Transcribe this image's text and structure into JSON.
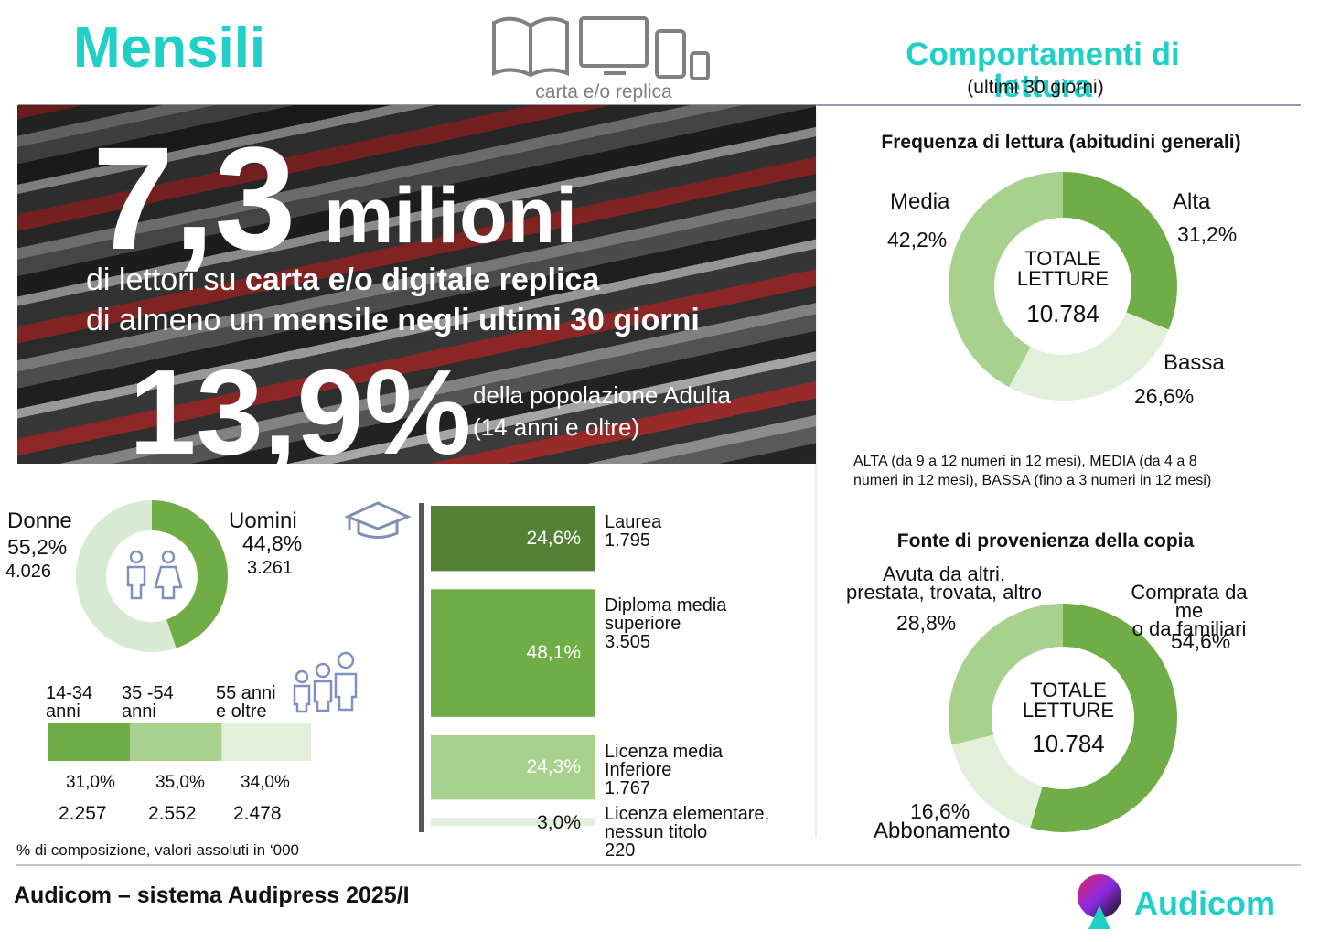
{
  "header": {
    "title": "Mensili",
    "icon_caption": "carta e/o replica",
    "right_title": "Comportamenti di lettura",
    "right_subtitle": "(ultimi 30 giorni)"
  },
  "hero": {
    "big_number": "7,3",
    "big_unit": "milioni",
    "line1_a": "di lettori su ",
    "line1_b": "carta e/o digitale replica",
    "line2_a": "di almeno un ",
    "line2_b": "mensile negli ultimi 30 giorni",
    "percent": "13,9%",
    "pop_line1": "della popolazione Adulta",
    "pop_line2": "(14 anni e oltre)"
  },
  "chart_data": [
    {
      "type": "donut",
      "title": "Frequenza di lettura  (abitudini generali)",
      "center_label": "TOTALE\nLETTURE",
      "center_value": "10.784",
      "categories": [
        "Alta",
        "Bassa",
        "Media"
      ],
      "values": [
        31.2,
        26.6,
        42.2
      ],
      "value_labels": [
        "31,2%",
        "26,6%",
        "42,2%"
      ],
      "colors": [
        "#70ad47",
        "#e2efda",
        "#a9d18e"
      ],
      "note": "ALTA (da 9 a 12 numeri in 12 mesi), MEDIA (da 4 a 8\nnumeri in 12 mesi), BASSA (fino a 3 numeri in 12 mesi)"
    },
    {
      "type": "donut",
      "title": "Fonte di provenienza della copia",
      "center_label": "TOTALE\nLETTURE",
      "center_value": "10.784",
      "categories": [
        "Comprata da me\no da familiari",
        "Abbonamento",
        "Avuta da altri,\nprestata, trovata, altro"
      ],
      "values": [
        54.6,
        16.6,
        28.8
      ],
      "value_labels": [
        "54,6%",
        "16,6%",
        "28,8%"
      ],
      "colors": [
        "#70ad47",
        "#e2efda",
        "#a9d18e"
      ]
    },
    {
      "type": "donut",
      "categories": [
        "Uomini",
        "Donne"
      ],
      "values": [
        44.8,
        55.2
      ],
      "value_labels": [
        "44,8%",
        "55,2%"
      ],
      "count_labels": [
        "3.261",
        "4.026"
      ],
      "colors": [
        "#70ad47",
        "#d9ead3"
      ]
    },
    {
      "type": "stacked-bar",
      "categories": [
        "14-34\nanni",
        "35 -54\nanni",
        "55 anni\ne oltre"
      ],
      "values": [
        31.0,
        35.0,
        34.0
      ],
      "value_labels": [
        "31,0%",
        "35,0%",
        "34,0%"
      ],
      "count_labels": [
        "2.257",
        "2.552",
        "2.478"
      ],
      "colors": [
        "#70ad47",
        "#a9d18e",
        "#e2efda"
      ],
      "xlim": [
        0,
        100
      ]
    },
    {
      "type": "bar",
      "categories": [
        "Laurea",
        "Diploma media\nsuperiore",
        "Licenza media\nInferiore",
        "Licenza elementare,\nnessun titolo"
      ],
      "values": [
        24.6,
        48.1,
        24.3,
        3.0
      ],
      "value_labels": [
        "24,6%",
        "48,1%",
        "24,3%",
        "3,0%"
      ],
      "count_labels": [
        "1.795",
        "3.505",
        "1.767",
        "220"
      ],
      "colors": [
        "#548235",
        "#70ad47",
        "#a9d18e",
        "#e2efda"
      ]
    }
  ],
  "footnote": "% di composizione, valori assoluti in ‘000",
  "footer": {
    "source": "Audicom – sistema Audipress 2025/I",
    "logo": "Audicom"
  }
}
